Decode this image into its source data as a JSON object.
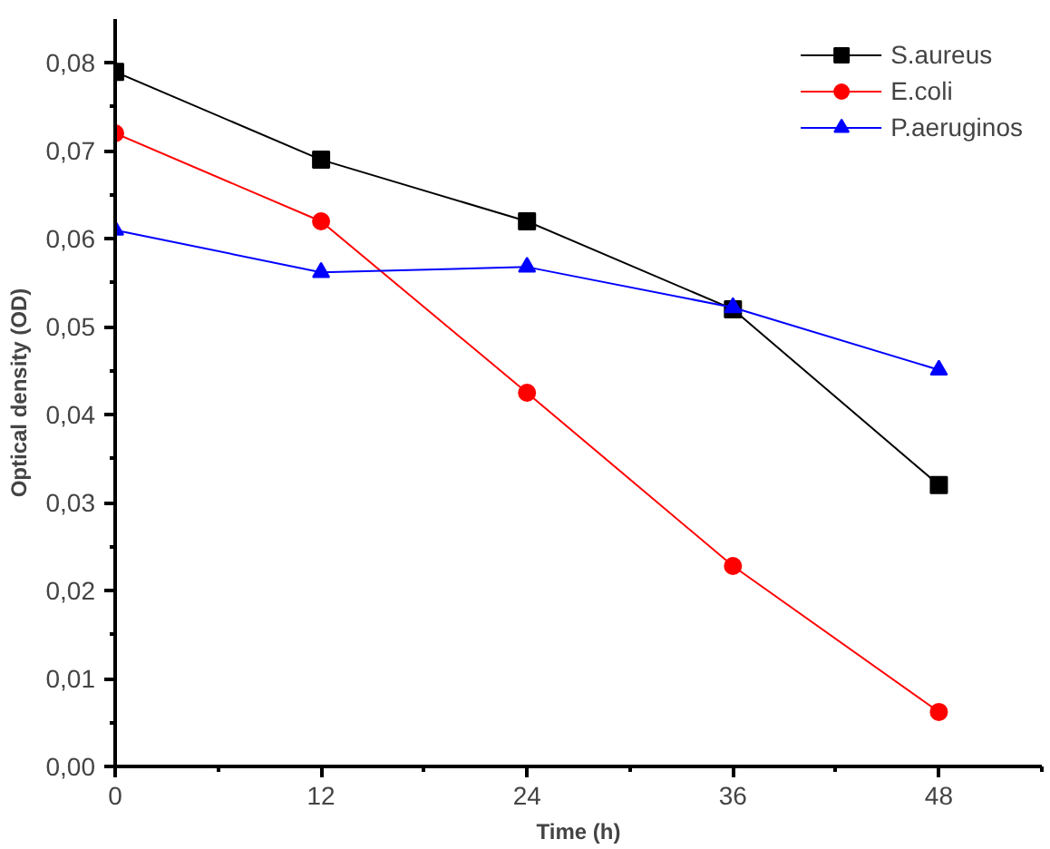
{
  "chart_data": {
    "type": "line",
    "xlabel": "Time (h)",
    "ylabel": "Optical density (OD)",
    "x": [
      0,
      12,
      24,
      36,
      48
    ],
    "series": [
      {
        "name": "S.aureus",
        "color": "#000000",
        "marker": "square",
        "values": [
          0.079,
          0.069,
          0.062,
          0.052,
          0.032
        ]
      },
      {
        "name": "E.coli",
        "color": "#ff0000",
        "marker": "circle",
        "values": [
          0.072,
          0.062,
          0.0425,
          0.0228,
          0.0062
        ]
      },
      {
        "name": "P.aeruginos",
        "color": "#0000ff",
        "marker": "triangle",
        "values": [
          0.061,
          0.0562,
          0.0568,
          0.0522,
          0.0451
        ]
      }
    ],
    "xlim": [
      0,
      54
    ],
    "ylim": [
      0,
      0.085
    ],
    "xticks": [
      0,
      12,
      24,
      36,
      48
    ],
    "yticks": [
      {
        "value": 0,
        "label": "0,00"
      },
      {
        "value": 0.01,
        "label": "0,01"
      },
      {
        "value": 0.02,
        "label": "0,02"
      },
      {
        "value": 0.03,
        "label": "0,03"
      },
      {
        "value": 0.04,
        "label": "0,04"
      },
      {
        "value": 0.05,
        "label": "0,05"
      },
      {
        "value": 0.06,
        "label": "0,06"
      },
      {
        "value": 0.07,
        "label": "0,07"
      },
      {
        "value": 0.08,
        "label": "0,08"
      }
    ],
    "grid": false,
    "legend": "top right",
    "line_style": "solid"
  }
}
